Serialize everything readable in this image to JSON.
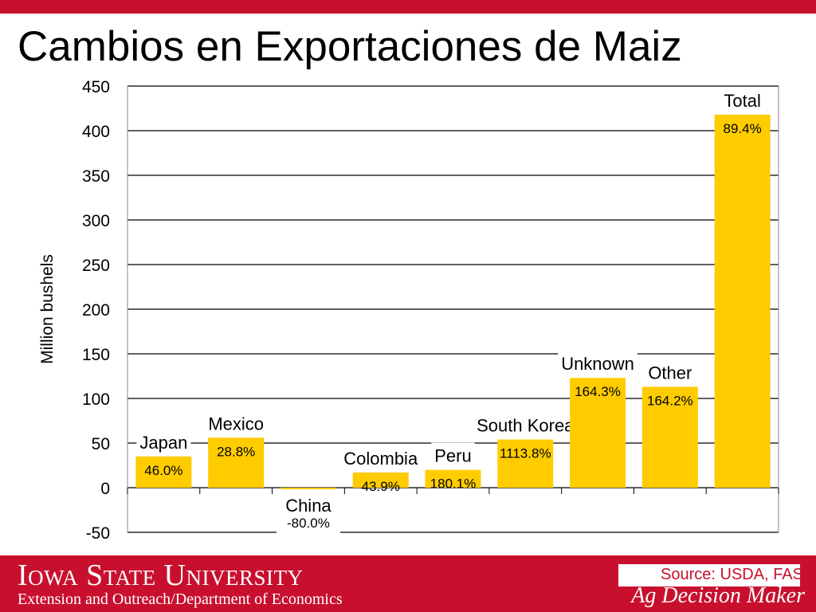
{
  "slide": {
    "title": "Cambios en Exportaciones de Maiz"
  },
  "footer": {
    "university": "Iowa State University",
    "department": "Extension and Outreach/Department of Economics",
    "source": "Source: USDA, FAS",
    "brand": "Ag Decision Maker"
  },
  "colors": {
    "accent_red": "#c8102e",
    "bar_gold": "#ffcc00"
  },
  "chart_data": {
    "type": "bar",
    "title": "",
    "xlabel": "",
    "ylabel": "Million bushels",
    "ylim": [
      -50,
      450
    ],
    "yticks": [
      450,
      400,
      350,
      300,
      250,
      200,
      150,
      100,
      50,
      0,
      -50
    ],
    "grid": true,
    "categories": [
      "Japan",
      "Mexico",
      "China",
      "Colombia",
      "Peru",
      "South Korea",
      "Unknown",
      "Other",
      "Total"
    ],
    "values": [
      35,
      56,
      -1,
      17,
      20,
      54,
      123,
      113,
      418
    ],
    "data_labels": [
      "46.0%",
      "28.8%",
      "-80.0%",
      "43.9%",
      "180.1%",
      "1113.8%",
      "164.3%",
      "164.2%",
      "89.4%"
    ]
  }
}
